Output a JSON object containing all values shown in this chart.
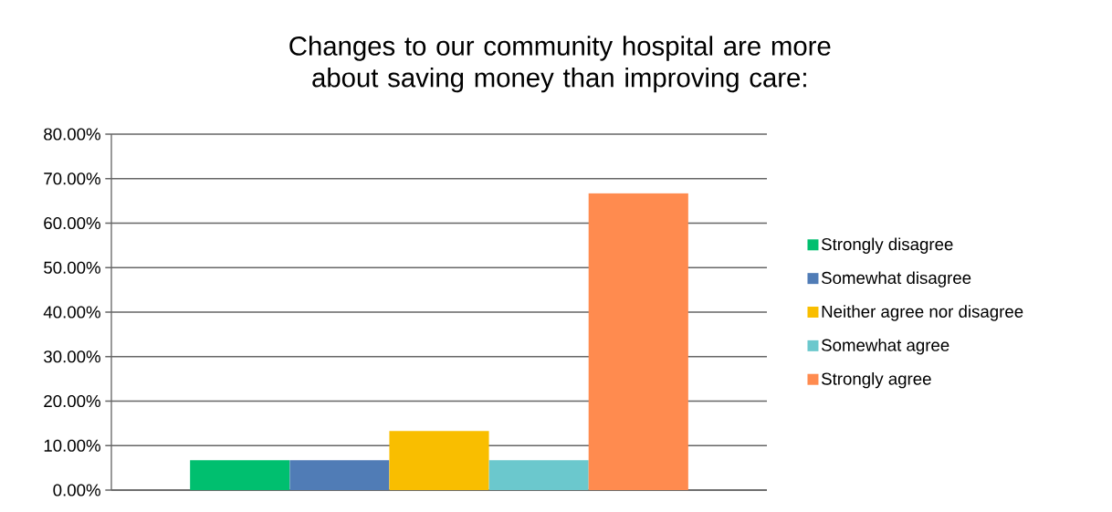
{
  "chart_data": {
    "type": "bar",
    "title": "Changes to our community hospital are more about saving money than improving care:",
    "categories": [
      null
    ],
    "series": [
      {
        "name": "Strongly disagree",
        "color": "#00bf6f",
        "values": [
          6.7
        ]
      },
      {
        "name": "Somewhat disagree",
        "color": "#507cb6",
        "values": [
          6.7
        ]
      },
      {
        "name": "Neither agree nor disagree",
        "color": "#f9be00",
        "values": [
          13.3
        ]
      },
      {
        "name": "Somewhat agree",
        "color": "#6bc8cd",
        "values": [
          6.7
        ]
      },
      {
        "name": "Strongly agree",
        "color": "#ff8b4f",
        "values": [
          66.7
        ]
      }
    ],
    "ylim": [
      0,
      80
    ],
    "yticks": [
      {
        "value": 0,
        "label": "0.00%"
      },
      {
        "value": 10,
        "label": "10.00%"
      },
      {
        "value": 20,
        "label": "20.00%"
      },
      {
        "value": 30,
        "label": "30.00%"
      },
      {
        "value": 40,
        "label": "40.00%"
      },
      {
        "value": 50,
        "label": "50.00%"
      },
      {
        "value": 60,
        "label": "60.00%"
      },
      {
        "value": 70,
        "label": "70.00%"
      },
      {
        "value": 80,
        "label": "80.00%"
      }
    ],
    "grid": "y",
    "legend": "right"
  }
}
